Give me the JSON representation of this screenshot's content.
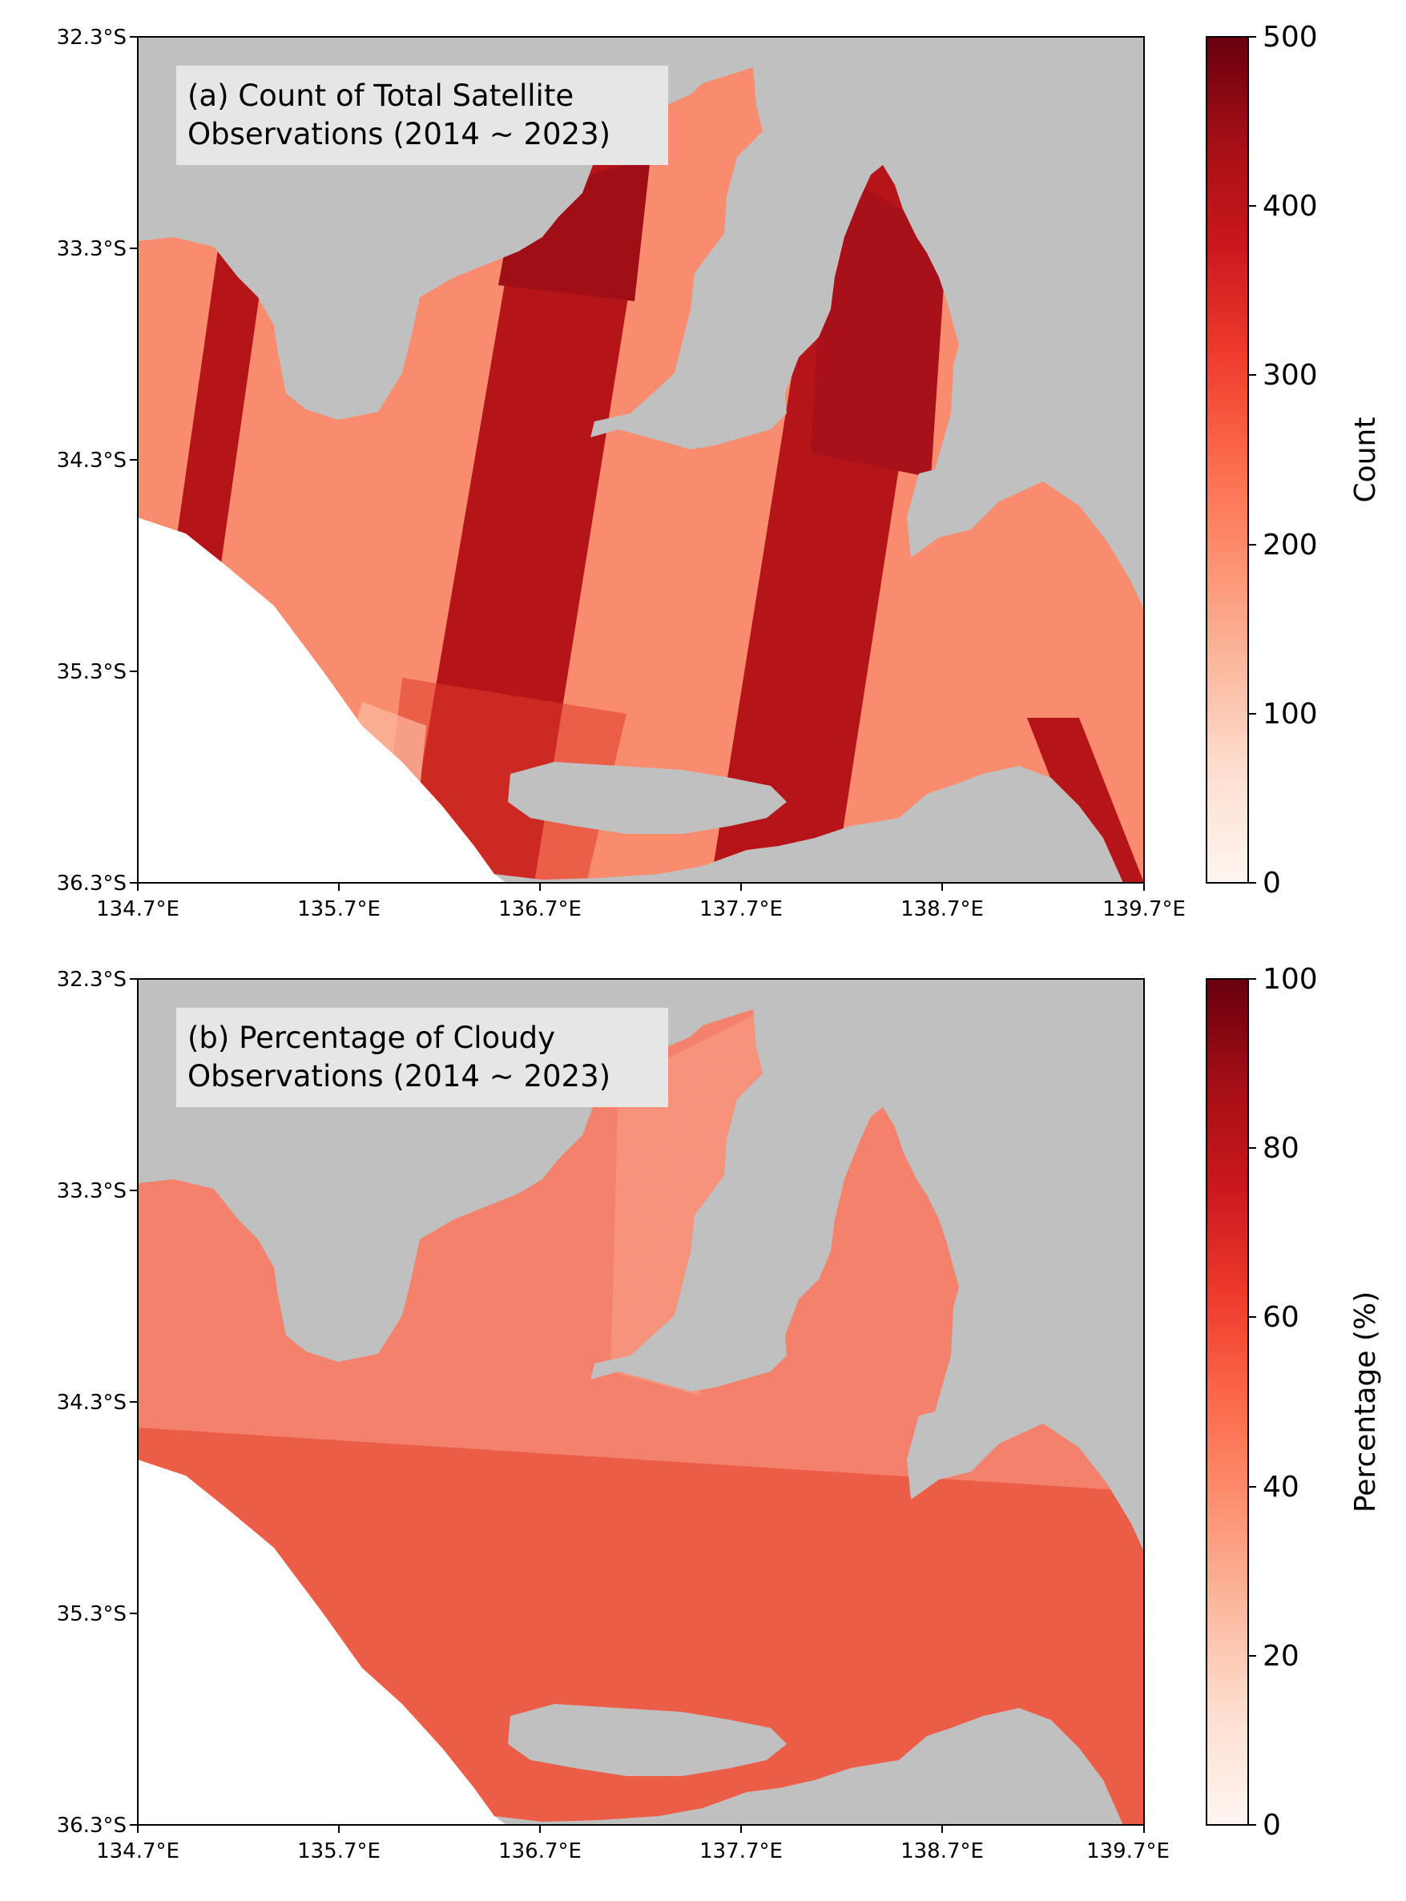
{
  "colors": {
    "land": "#c0c0c0",
    "no_coverage": "#ffffff",
    "reds_low": "#fff5f0",
    "reds_high": "#67000d",
    "title_box": "#e6e6e6"
  },
  "x_ticks": [
    "134.7°E",
    "135.7°E",
    "136.7°E",
    "137.7°E",
    "138.7°E",
    "139.7°E"
  ],
  "y_ticks": [
    "32.3°S",
    "33.3°S",
    "34.3°S",
    "35.3°S",
    "36.3°S"
  ],
  "panels": [
    {
      "id": "a",
      "title_lines": [
        "(a) Count of Total Satellite",
        "Observations (2014 ~ 2023)"
      ],
      "colorbar": {
        "label": "Count",
        "ticks": [
          "0",
          "100",
          "200",
          "300",
          "400",
          "500"
        ],
        "min": 0,
        "max": 500
      },
      "base_value": 215,
      "swath_value": 410
    },
    {
      "id": "b",
      "title_lines": [
        "(b) Percentage of Cloudy",
        "Observations (2014 ~ 2023)"
      ],
      "colorbar": {
        "label": "Percentage (%)",
        "ticks": [
          "0",
          "20",
          "40",
          "60",
          "80",
          "100"
        ],
        "min": 0,
        "max": 100
      },
      "base_value": 48,
      "south_value": 60
    }
  ],
  "map_extent": {
    "lon": [
      134.7,
      139.7
    ],
    "lat": [
      -36.3,
      -32.3
    ]
  }
}
